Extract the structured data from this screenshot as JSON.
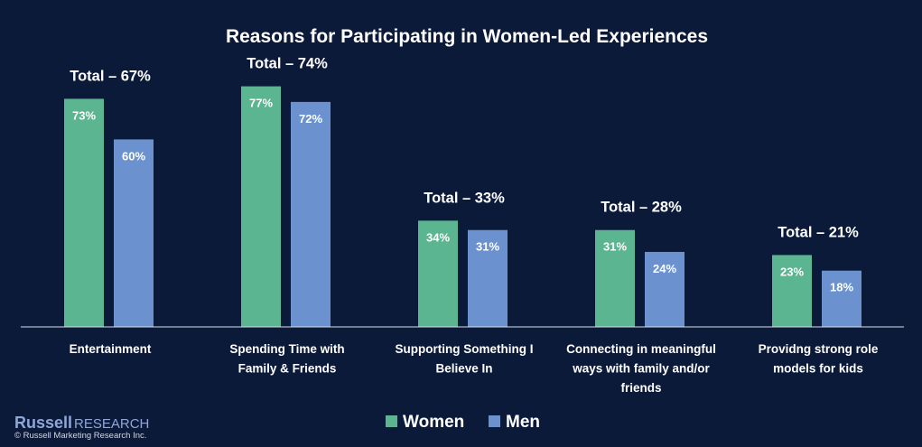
{
  "chart_data": {
    "type": "bar",
    "title": "Reasons for Participating in Women-Led Experiences",
    "categories": [
      [
        "Entertainment"
      ],
      [
        "Spending Time with",
        "Family & Friends"
      ],
      [
        "Supporting Something I",
        "Believe In"
      ],
      [
        "Connecting in meaningful",
        "ways with family and/or",
        "friends"
      ],
      [
        "Providng strong role",
        "models for kids"
      ]
    ],
    "series": [
      {
        "name": "Women",
        "color": "#5bb591",
        "values": [
          73,
          77,
          34,
          31,
          23
        ]
      },
      {
        "name": "Men",
        "color": "#6b92cf",
        "values": [
          60,
          72,
          31,
          24,
          18
        ]
      }
    ],
    "bar_labels": [
      [
        "73%",
        "77%",
        "34%",
        "31%",
        "23%"
      ],
      [
        "60%",
        "72%",
        "31%",
        "24%",
        "18%"
      ]
    ],
    "totals": [
      "Total – 67%",
      "Total – 74%",
      "Total – 33%",
      "Total – 28%",
      "Total – 21%"
    ],
    "ylim": [
      0,
      100
    ],
    "grid": false,
    "legend_position": "bottom-center"
  },
  "branding": {
    "name_bold": "Russell",
    "name_light": "RESEARCH",
    "copyright": "© Russell Marketing Research Inc."
  },
  "colors": {
    "background": "#0c1a3a",
    "axis": "#d9dfea"
  }
}
